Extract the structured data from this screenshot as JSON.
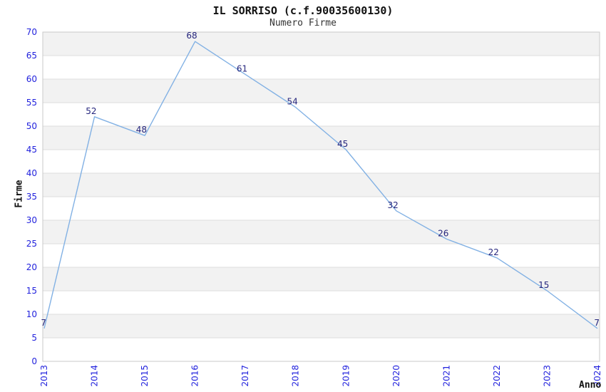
{
  "header": {
    "title": "IL SORRISO (c.f.90035600130)",
    "subtitle": "Numero Firme"
  },
  "chart_data": {
    "type": "line",
    "title": "IL SORRISO (c.f.90035600130)",
    "subtitle": "Numero Firme",
    "xlabel": "Anno",
    "ylabel": "Firme",
    "x": [
      "2013",
      "2014",
      "2015",
      "2016",
      "2017",
      "2018",
      "2019",
      "2020",
      "2021",
      "2022",
      "2023",
      "2024"
    ],
    "series": [
      {
        "name": "Numero Firme",
        "values": [
          7,
          52,
          48,
          68,
          61,
          54,
          45,
          32,
          26,
          22,
          15,
          7
        ]
      }
    ],
    "ylim": [
      0,
      70
    ],
    "ytick_step": 5,
    "x_tick_rotation": 90,
    "grid": "horizontal gridlines with alternating bands",
    "legend": "none",
    "colors": {
      "line": "#82b1e4",
      "tick_label": "#2222dd",
      "point_label": "#26267d",
      "band": "#f2f2f2",
      "gridline": "#dedede",
      "border": "#c9c9c9",
      "background": "#ffffff"
    }
  }
}
